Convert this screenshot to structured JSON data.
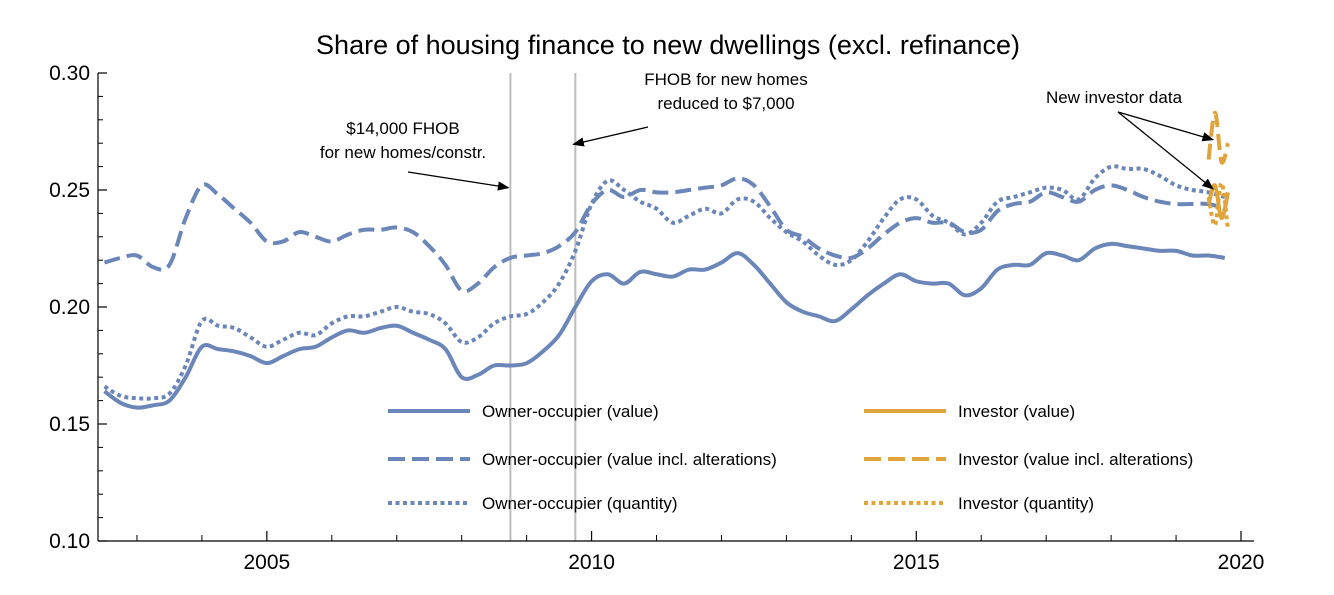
{
  "chart_data": {
    "type": "line",
    "title": "Share of housing finance to new dwellings (excl. refinance)",
    "xlabel": "",
    "ylabel": "",
    "xlim": [
      2002.4,
      2020.2
    ],
    "ylim": [
      0.1,
      0.3
    ],
    "xticks": [
      2005,
      2010,
      2015,
      2020
    ],
    "xtick_labels": [
      "2005",
      "2010",
      "2015",
      "2020"
    ],
    "yticks": [
      0.1,
      0.15,
      0.2,
      0.25,
      0.3
    ],
    "ytick_labels": [
      "0.10",
      "0.15",
      "0.20",
      "0.25",
      "0.30"
    ],
    "vertical_lines": [
      2008.75,
      2009.75
    ],
    "series": [
      {
        "name": "Owner-occupier (value)",
        "color": "#6b86b8",
        "style": "solid",
        "x": [
          2002.5,
          2002.75,
          2003.0,
          2003.25,
          2003.5,
          2003.75,
          2004.0,
          2004.25,
          2004.5,
          2004.75,
          2005.0,
          2005.25,
          2005.5,
          2005.75,
          2006.0,
          2006.25,
          2006.5,
          2006.75,
          2007.0,
          2007.25,
          2007.5,
          2007.75,
          2008.0,
          2008.25,
          2008.5,
          2008.75,
          2009.0,
          2009.25,
          2009.5,
          2009.75,
          2010.0,
          2010.25,
          2010.5,
          2010.75,
          2011.0,
          2011.25,
          2011.5,
          2011.75,
          2012.0,
          2012.25,
          2012.5,
          2012.75,
          2013.0,
          2013.25,
          2013.5,
          2013.75,
          2014.0,
          2014.25,
          2014.5,
          2014.75,
          2015.0,
          2015.25,
          2015.5,
          2015.75,
          2016.0,
          2016.25,
          2016.5,
          2016.75,
          2017.0,
          2017.25,
          2017.5,
          2017.75,
          2018.0,
          2018.25,
          2018.5,
          2018.75,
          2019.0,
          2019.25,
          2019.5,
          2019.75
        ],
        "values": [
          0.164,
          0.159,
          0.157,
          0.158,
          0.16,
          0.17,
          0.183,
          0.182,
          0.181,
          0.179,
          0.176,
          0.179,
          0.182,
          0.183,
          0.187,
          0.19,
          0.189,
          0.191,
          0.192,
          0.189,
          0.186,
          0.182,
          0.17,
          0.171,
          0.175,
          0.175,
          0.176,
          0.181,
          0.188,
          0.2,
          0.211,
          0.214,
          0.21,
          0.215,
          0.214,
          0.213,
          0.216,
          0.216,
          0.219,
          0.223,
          0.218,
          0.21,
          0.202,
          0.198,
          0.196,
          0.194,
          0.199,
          0.205,
          0.21,
          0.214,
          0.211,
          0.21,
          0.21,
          0.205,
          0.208,
          0.216,
          0.218,
          0.218,
          0.223,
          0.222,
          0.22,
          0.225,
          0.227,
          0.226,
          0.225,
          0.224,
          0.224,
          0.222,
          0.222,
          0.221
        ]
      },
      {
        "name": "Owner-occupier (value incl. alterations)",
        "color": "#6b86b8",
        "style": "dashed",
        "x": [
          2002.5,
          2002.75,
          2003.0,
          2003.25,
          2003.5,
          2003.75,
          2004.0,
          2004.25,
          2004.5,
          2004.75,
          2005.0,
          2005.25,
          2005.5,
          2005.75,
          2006.0,
          2006.25,
          2006.5,
          2006.75,
          2007.0,
          2007.25,
          2007.5,
          2007.75,
          2008.0,
          2008.25,
          2008.5,
          2008.75,
          2009.0,
          2009.25,
          2009.5,
          2009.75,
          2010.0,
          2010.25,
          2010.5,
          2010.75,
          2011.0,
          2011.25,
          2011.5,
          2011.75,
          2012.0,
          2012.25,
          2012.5,
          2012.75,
          2013.0,
          2013.25,
          2013.5,
          2013.75,
          2014.0,
          2014.25,
          2014.5,
          2014.75,
          2015.0,
          2015.25,
          2015.5,
          2015.75,
          2016.0,
          2016.25,
          2016.5,
          2016.75,
          2017.0,
          2017.25,
          2017.5,
          2017.75,
          2018.0,
          2018.25,
          2018.5,
          2018.75,
          2019.0,
          2019.25,
          2019.5,
          2019.75
        ],
        "values": [
          0.219,
          0.221,
          0.222,
          0.217,
          0.218,
          0.238,
          0.252,
          0.248,
          0.242,
          0.236,
          0.228,
          0.228,
          0.232,
          0.23,
          0.228,
          0.231,
          0.233,
          0.233,
          0.234,
          0.232,
          0.226,
          0.218,
          0.207,
          0.21,
          0.217,
          0.221,
          0.222,
          0.223,
          0.226,
          0.232,
          0.244,
          0.25,
          0.247,
          0.25,
          0.249,
          0.249,
          0.25,
          0.251,
          0.252,
          0.255,
          0.252,
          0.243,
          0.233,
          0.23,
          0.225,
          0.222,
          0.221,
          0.225,
          0.231,
          0.236,
          0.238,
          0.236,
          0.236,
          0.232,
          0.233,
          0.241,
          0.244,
          0.245,
          0.249,
          0.247,
          0.245,
          0.25,
          0.252,
          0.25,
          0.247,
          0.245,
          0.244,
          0.244,
          0.244,
          0.242
        ]
      },
      {
        "name": "Owner-occupier (quantity)",
        "color": "#6b86b8",
        "style": "dotted",
        "x": [
          2002.5,
          2002.75,
          2003.0,
          2003.25,
          2003.5,
          2003.75,
          2004.0,
          2004.25,
          2004.5,
          2004.75,
          2005.0,
          2005.25,
          2005.5,
          2005.75,
          2006.0,
          2006.25,
          2006.5,
          2006.75,
          2007.0,
          2007.25,
          2007.5,
          2007.75,
          2008.0,
          2008.25,
          2008.5,
          2008.75,
          2009.0,
          2009.25,
          2009.5,
          2009.75,
          2010.0,
          2010.25,
          2010.5,
          2010.75,
          2011.0,
          2011.25,
          2011.5,
          2011.75,
          2012.0,
          2012.25,
          2012.5,
          2012.75,
          2013.0,
          2013.25,
          2013.5,
          2013.75,
          2014.0,
          2014.25,
          2014.5,
          2014.75,
          2015.0,
          2015.25,
          2015.5,
          2015.75,
          2016.0,
          2016.25,
          2016.5,
          2016.75,
          2017.0,
          2017.25,
          2017.5,
          2017.75,
          2018.0,
          2018.25,
          2018.5,
          2018.75,
          2019.0,
          2019.25,
          2019.5,
          2019.75
        ],
        "values": [
          0.166,
          0.162,
          0.161,
          0.161,
          0.163,
          0.175,
          0.194,
          0.192,
          0.191,
          0.187,
          0.183,
          0.186,
          0.189,
          0.188,
          0.193,
          0.196,
          0.196,
          0.198,
          0.2,
          0.198,
          0.197,
          0.193,
          0.185,
          0.187,
          0.193,
          0.196,
          0.197,
          0.202,
          0.21,
          0.224,
          0.244,
          0.254,
          0.25,
          0.245,
          0.242,
          0.236,
          0.239,
          0.242,
          0.24,
          0.246,
          0.245,
          0.238,
          0.232,
          0.228,
          0.222,
          0.218,
          0.22,
          0.228,
          0.238,
          0.246,
          0.246,
          0.239,
          0.236,
          0.231,
          0.236,
          0.245,
          0.247,
          0.249,
          0.251,
          0.25,
          0.246,
          0.255,
          0.26,
          0.259,
          0.259,
          0.256,
          0.252,
          0.25,
          0.249,
          0.247
        ]
      },
      {
        "name": "Investor (value)",
        "color": "#e0a43a",
        "style": "solid",
        "x": [
          2019.5,
          2019.6,
          2019.7,
          2019.8
        ],
        "values": [
          0.244,
          0.252,
          0.238,
          0.249
        ]
      },
      {
        "name": "Investor (value incl. alterations)",
        "color": "#e0a43a",
        "style": "dashed",
        "x": [
          2019.5,
          2019.6,
          2019.7,
          2019.8
        ],
        "values": [
          0.263,
          0.283,
          0.262,
          0.27
        ]
      },
      {
        "name": "Investor (quantity)",
        "color": "#e0a43a",
        "style": "dotted",
        "x": [
          2019.5,
          2019.6,
          2019.7,
          2019.8
        ],
        "values": [
          0.247,
          0.235,
          0.253,
          0.233
        ]
      }
    ],
    "annotations": [
      {
        "lines": [
          "$14,000 FHOB",
          "for new homes/constr."
        ],
        "arrow_to_x": 2008.75,
        "arrow_to_y": 0.251
      },
      {
        "lines": [
          "FHOB for new homes",
          "reduced to $7,000"
        ],
        "arrow_to_x": 2009.75,
        "arrow_to_y": 0.2695
      },
      {
        "lines": [
          "New investor data"
        ],
        "arrow_to_x": 2019.6,
        "arrow_to_y": 0.2715,
        "arrow2_to_x": 2019.6,
        "arrow2_to_y": 0.2505
      }
    ],
    "legend": {
      "placement": "bottom-right",
      "columns": 2
    }
  }
}
